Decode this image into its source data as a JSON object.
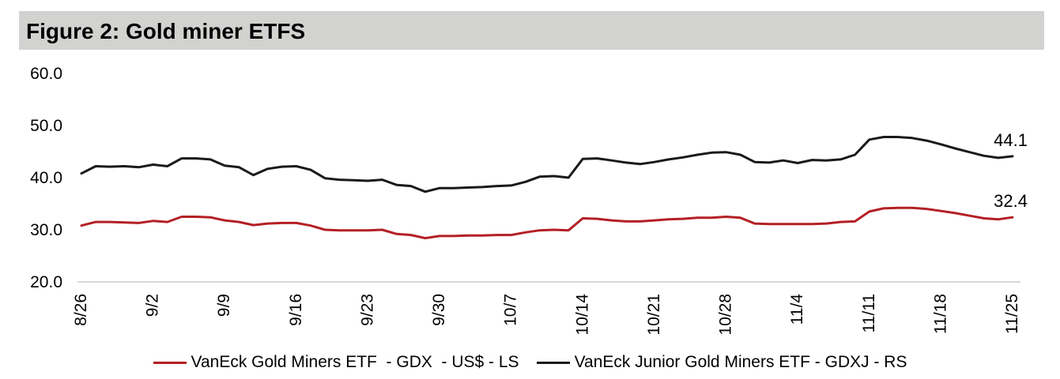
{
  "title": "Figure 2: Gold miner ETFS",
  "colors": {
    "gdx_red": "#b42025",
    "gdxj_black": "#1a1a1a",
    "titlebar_bg": "#d2d2d0",
    "axis_line": "#d9d9d9",
    "text": "#000000"
  },
  "legend": {
    "items": [
      {
        "label": "VanEck Gold Miners ETF  - GDX  - US$ - LS",
        "color": "#b42025"
      },
      {
        "label": "VanEck Junior Gold Miners ETF - GDXJ - RS",
        "color": "#1a1a1a"
      }
    ]
  },
  "chart_data": {
    "type": "line",
    "title": "Figure 2: Gold miner ETFS",
    "grid": false,
    "legend_position": "bottom",
    "ylim": [
      20,
      60
    ],
    "y_ticks": [
      {
        "value": 60,
        "label": "60.0"
      },
      {
        "value": 50,
        "label": "50.0"
      },
      {
        "value": 40,
        "label": "40.0"
      },
      {
        "value": 30,
        "label": "30.0"
      },
      {
        "value": 20,
        "label": "20.0"
      }
    ],
    "x_tick_labels": [
      "8/26",
      "9/2",
      "9/9",
      "9/16",
      "9/23",
      "9/30",
      "10/7",
      "10/14",
      "10/21",
      "10/28",
      "11/4",
      "11/11",
      "11/18",
      "11/25"
    ],
    "x_tick_every": 5,
    "x_tick_rotation": -90,
    "series": [
      {
        "name": "VanEck Gold Miners ETF - GDX - US$ - LS",
        "id": "gdx",
        "axis": "left",
        "color": "#b42025",
        "end_label": "32.4",
        "values": [
          30.8,
          31.5,
          31.5,
          31.4,
          31.3,
          31.7,
          31.5,
          32.5,
          32.5,
          32.4,
          31.8,
          31.5,
          30.9,
          31.2,
          31.3,
          31.3,
          30.8,
          30.0,
          29.9,
          29.9,
          29.9,
          30.0,
          29.2,
          29.0,
          28.4,
          28.8,
          28.8,
          28.9,
          28.9,
          29.0,
          29.0,
          29.5,
          29.9,
          30.0,
          29.9,
          32.2,
          32.1,
          31.8,
          31.6,
          31.6,
          31.8,
          32.0,
          32.1,
          32.3,
          32.3,
          32.5,
          32.3,
          31.2,
          31.1,
          31.1,
          31.1,
          31.1,
          31.2,
          31.5,
          31.6,
          33.5,
          34.1,
          34.2,
          34.2,
          34.0,
          33.6,
          33.2,
          32.7,
          32.2,
          32.0,
          32.4
        ]
      },
      {
        "name": "VanEck Junior Gold Miners ETF - GDXJ - RS",
        "id": "gdxj",
        "axis": "right",
        "color": "#1a1a1a",
        "end_label": "44.1",
        "values": [
          40.8,
          42.2,
          42.1,
          42.2,
          42.0,
          42.5,
          42.2,
          43.7,
          43.7,
          43.5,
          42.3,
          42.0,
          40.5,
          41.7,
          42.1,
          42.2,
          41.5,
          39.9,
          39.6,
          39.5,
          39.4,
          39.6,
          38.6,
          38.4,
          37.3,
          38.0,
          38.0,
          38.1,
          38.2,
          38.4,
          38.5,
          39.2,
          40.2,
          40.3,
          40.0,
          43.6,
          43.7,
          43.3,
          42.9,
          42.6,
          43.0,
          43.5,
          43.9,
          44.4,
          44.8,
          44.9,
          44.4,
          43.0,
          42.9,
          43.3,
          42.8,
          43.4,
          43.3,
          43.5,
          44.4,
          47.3,
          47.8,
          47.8,
          47.6,
          47.1,
          46.4,
          45.6,
          44.9,
          44.2,
          43.8,
          44.1
        ]
      }
    ]
  }
}
